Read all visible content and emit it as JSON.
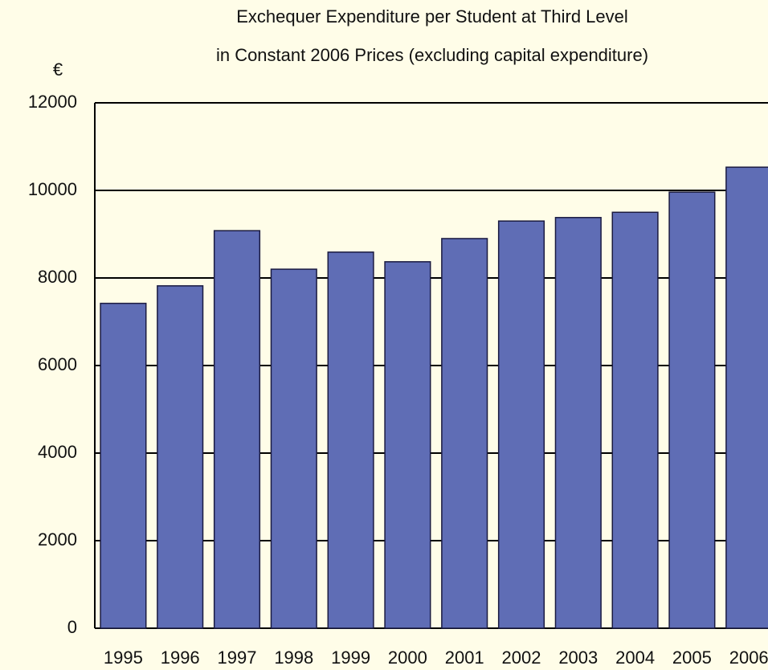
{
  "chart_data": {
    "type": "bar",
    "title": [
      "Exchequer Expenditure per Student at Third Level",
      "in Constant 2006 Prices (excluding capital expenditure)"
    ],
    "y_label": "€",
    "categories": [
      "1995",
      "1996",
      "1997",
      "1998",
      "1999",
      "2000",
      "2001",
      "2002",
      "2003",
      "2004",
      "2005",
      "2006"
    ],
    "values": [
      7420,
      7820,
      9080,
      8200,
      8590,
      8370,
      8900,
      9300,
      9380,
      9500,
      9960,
      10530
    ],
    "color": "#5f6db5",
    "ylim": [
      0,
      12000
    ],
    "yticks": [
      0,
      2000,
      4000,
      6000,
      8000,
      10000,
      12000
    ],
    "grid": true
  }
}
